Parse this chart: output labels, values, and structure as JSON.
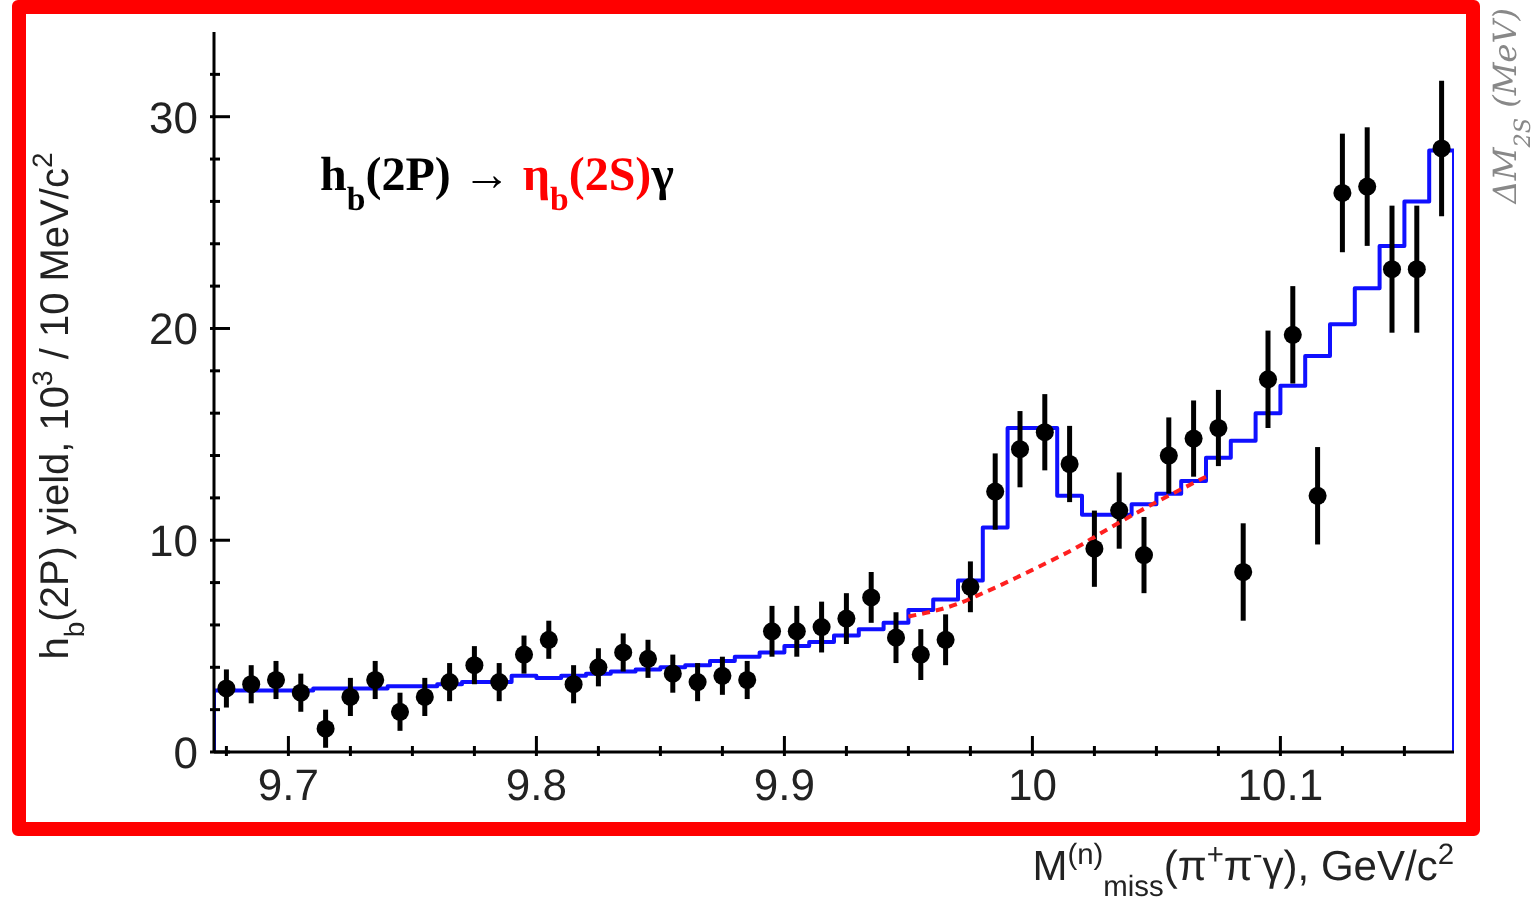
{
  "chart_data": {
    "type": "scatter",
    "annotations": [
      "h$_{b}$(2P) → ",
      "η$_{b}$(2S)",
      "γ",
      "ΔM$_{2S}$ (MeV)"
    ],
    "xlabel": "M$^{(n)}$$_{miss}$(π$^{+}$π$^{-}$γ), GeV/c$^{2}$",
    "ylabel": "h$_{b}$(2P) yield, 10$^{3}$ / 10 MeV/c$^{2}$",
    "xlim": [
      9.67,
      10.17
    ],
    "ylim": [
      0,
      34
    ],
    "xticks": [
      {
        "value": 9.675,
        "label": null
      },
      9.7,
      {
        "value": 9.725,
        "label": null
      },
      {
        "value": 9.75,
        "label": null
      },
      {
        "value": 9.775,
        "label": null
      },
      9.8,
      {
        "value": 9.825,
        "label": null
      },
      {
        "value": 9.85,
        "label": null
      },
      {
        "value": 9.875,
        "label": null
      },
      9.9,
      {
        "value": 9.925,
        "label": null
      },
      {
        "value": 9.95,
        "label": null
      },
      {
        "value": 9.975,
        "label": null
      },
      10,
      {
        "value": 10.025,
        "label": null
      },
      {
        "value": 10.05,
        "label": null
      },
      {
        "value": 10.075,
        "label": null
      },
      10.1,
      {
        "value": 10.125,
        "label": null
      },
      {
        "value": 10.15,
        "label": null
      }
    ],
    "yticks": [
      0,
      {
        "value": 2,
        "label": null
      },
      {
        "value": 4,
        "label": null
      },
      {
        "value": 6,
        "label": null
      },
      {
        "value": 8,
        "label": null
      },
      10,
      {
        "value": 12,
        "label": null
      },
      {
        "value": 14,
        "label": null
      },
      {
        "value": 16,
        "label": null
      },
      {
        "value": 18,
        "label": null
      },
      20,
      {
        "value": 22,
        "label": null
      },
      {
        "value": 24,
        "label": null
      },
      {
        "value": 26,
        "label": null
      },
      {
        "value": 28,
        "label": null
      },
      30,
      {
        "value": 32,
        "label": null
      }
    ],
    "series": [
      {
        "type": "step",
        "color": "#1010ff",
        "line_style": "solid",
        "marker": "none",
        "x": [
          9.67,
          9.67,
          9.68,
          9.69,
          9.7,
          9.71,
          9.72,
          9.73,
          9.74,
          9.75,
          9.76,
          9.77,
          9.78,
          9.79,
          9.8,
          9.81,
          9.82,
          9.83,
          9.84,
          9.85,
          9.86,
          9.87,
          9.88,
          9.89,
          9.9,
          9.91,
          9.92,
          9.93,
          9.94,
          9.95,
          9.96,
          9.97,
          9.98,
          9.99,
          10.0,
          10.01,
          10.02,
          10.03,
          10.04,
          10.05,
          10.06,
          10.07,
          10.08,
          10.09,
          10.1,
          10.11,
          10.12,
          10.13,
          10.14,
          10.15,
          10.16,
          10.17
        ],
        "values": [
          0,
          2.9,
          2.9,
          2.9,
          2.9,
          3.0,
          3.0,
          3.0,
          3.1,
          3.1,
          3.2,
          3.3,
          3.3,
          3.6,
          3.5,
          3.6,
          3.7,
          3.8,
          3.9,
          4.0,
          4.1,
          4.3,
          4.5,
          4.7,
          5.0,
          5.2,
          5.5,
          5.8,
          6.1,
          6.7,
          7.2,
          8.1,
          10.6,
          15.3,
          15.3,
          12.1,
          11.2,
          11.2,
          11.7,
          12.2,
          12.8,
          13.9,
          14.7,
          16.0,
          17.3,
          18.7,
          20.2,
          21.9,
          23.9,
          26.0,
          28.4,
          0
        ]
      },
      {
        "type": "line",
        "color": "#ff2020",
        "line_style": "dashed",
        "marker": "none",
        "x": [
          9.95,
          9.97,
          9.98,
          10.0,
          10.02,
          10.03,
          10.05,
          10.07
        ],
        "values": [
          6.4,
          7.0,
          7.5,
          8.6,
          9.8,
          10.5,
          11.8,
          13.0
        ]
      },
      {
        "type": "scatter",
        "color": "#000000",
        "marker": "circle",
        "x": [
          9.675,
          9.685,
          9.695,
          9.705,
          9.715,
          9.725,
          9.735,
          9.745,
          9.755,
          9.765,
          9.775,
          9.785,
          9.795,
          9.805,
          9.815,
          9.825,
          9.835,
          9.845,
          9.855,
          9.865,
          9.875,
          9.885,
          9.895,
          9.905,
          9.915,
          9.925,
          9.935,
          9.945,
          9.955,
          9.965,
          9.975,
          9.985,
          9.995,
          10.005,
          10.015,
          10.025,
          10.035,
          10.045,
          10.055,
          10.065,
          10.075,
          10.085,
          10.095,
          10.105,
          10.115,
          10.125,
          10.135,
          10.145,
          10.155,
          10.165
        ],
        "values": [
          3.0,
          3.2,
          3.4,
          2.8,
          1.1,
          2.6,
          3.4,
          1.9,
          2.6,
          3.3,
          4.1,
          3.3,
          4.6,
          5.3,
          3.2,
          4.0,
          4.7,
          4.4,
          3.7,
          3.3,
          3.6,
          3.4,
          5.7,
          5.7,
          5.9,
          6.3,
          7.3,
          5.4,
          4.6,
          5.3,
          7.8,
          12.3,
          14.3,
          15.1,
          13.6,
          9.6,
          11.4,
          9.3,
          14.0,
          14.8,
          15.3,
          8.5,
          17.6,
          19.7,
          12.1,
          26.4,
          26.7,
          22.8,
          22.8,
          28.5
        ],
        "errors": [
          0.9,
          0.9,
          0.9,
          0.9,
          0.9,
          0.9,
          0.9,
          0.9,
          0.9,
          0.9,
          0.9,
          0.9,
          0.9,
          0.9,
          0.9,
          0.9,
          0.9,
          0.9,
          0.9,
          0.9,
          0.9,
          0.9,
          1.2,
          1.2,
          1.2,
          1.2,
          1.2,
          1.2,
          1.2,
          1.2,
          1.2,
          1.8,
          1.8,
          1.8,
          1.8,
          1.8,
          1.8,
          1.8,
          1.8,
          1.8,
          1.8,
          2.3,
          2.3,
          2.3,
          2.3,
          2.8,
          2.8,
          3.0,
          3.0,
          3.2
        ]
      }
    ]
  }
}
